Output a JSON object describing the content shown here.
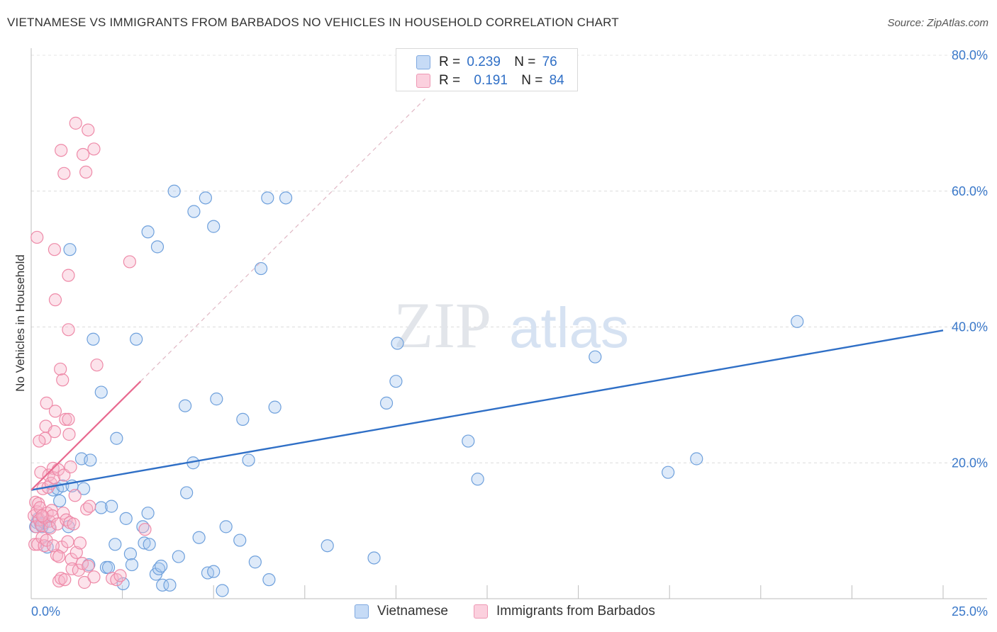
{
  "title": "VIETNAMESE VS IMMIGRANTS FROM BARBADOS NO VEHICLES IN HOUSEHOLD CORRELATION CHART",
  "source": "Source: ZipAtlas.com",
  "watermark": {
    "part1": "ZIP",
    "part2": "atlas"
  },
  "legend_top": {
    "rows": [
      {
        "r_label": "R =",
        "r_value": "0.239",
        "n_label": "N =",
        "n_value": "76",
        "color": "#a9c8f0"
      },
      {
        "r_label": "R =",
        "r_value": "0.191",
        "n_label": "N =",
        "n_value": "84",
        "color": "#f7b6cb"
      }
    ]
  },
  "chart_data": {
    "type": "scatter",
    "title": "VIETNAMESE VS IMMIGRANTS FROM BARBADOS NO VEHICLES IN HOUSEHOLD CORRELATION CHART",
    "xlabel": "",
    "ylabel": "No Vehicles in Household",
    "xlim": [
      0,
      25
    ],
    "ylim": [
      0,
      80
    ],
    "x_tick_labels": [
      "0.0%",
      "25.0%"
    ],
    "y_ticks": [
      20,
      40,
      60,
      80
    ],
    "y_tick_labels": [
      "20.0%",
      "40.0%",
      "60.0%",
      "80.0%"
    ],
    "grid": true,
    "series": [
      {
        "name": "Vietnamese",
        "color": "#a9c8f0",
        "stroke": "#6ea0dc",
        "trend": {
          "x": [
            0,
            25
          ],
          "y": [
            16.0,
            39.5
          ],
          "color": "#2f6fc6",
          "style": "solid"
        },
        "points": [
          [
            0.12,
            10.6
          ],
          [
            0.16,
            11.2
          ],
          [
            0.2,
            11.8
          ],
          [
            0.26,
            11.0
          ],
          [
            0.3,
            10.6
          ],
          [
            0.36,
            11.2
          ],
          [
            0.44,
            7.6
          ],
          [
            0.5,
            10.6
          ],
          [
            0.6,
            16.0
          ],
          [
            0.72,
            16.2
          ],
          [
            0.78,
            14.4
          ],
          [
            0.86,
            16.6
          ],
          [
            1.02,
            10.6
          ],
          [
            1.12,
            16.6
          ],
          [
            1.38,
            20.6
          ],
          [
            1.44,
            16.2
          ],
          [
            1.58,
            5.0
          ],
          [
            1.62,
            20.4
          ],
          [
            1.7,
            38.2
          ],
          [
            1.92,
            13.4
          ],
          [
            1.92,
            30.4
          ],
          [
            2.06,
            4.6
          ],
          [
            2.12,
            4.6
          ],
          [
            2.2,
            13.6
          ],
          [
            2.3,
            8.0
          ],
          [
            2.34,
            23.6
          ],
          [
            2.52,
            2.2
          ],
          [
            2.6,
            11.8
          ],
          [
            2.72,
            6.6
          ],
          [
            2.76,
            5.0
          ],
          [
            2.88,
            38.2
          ],
          [
            3.06,
            10.6
          ],
          [
            3.1,
            8.2
          ],
          [
            3.2,
            12.6
          ],
          [
            3.24,
            8.0
          ],
          [
            3.42,
            3.6
          ],
          [
            3.5,
            4.4
          ],
          [
            3.56,
            4.8
          ],
          [
            3.6,
            2.0
          ],
          [
            3.8,
            2.0
          ],
          [
            3.92,
            60.0
          ],
          [
            4.04,
            6.2
          ],
          [
            4.22,
            28.4
          ],
          [
            4.26,
            15.6
          ],
          [
            4.46,
            57.0
          ],
          [
            4.44,
            20.0
          ],
          [
            4.6,
            9.0
          ],
          [
            4.78,
            59.0
          ],
          [
            4.84,
            3.8
          ],
          [
            5.0,
            4.0
          ],
          [
            5.08,
            29.4
          ],
          [
            5.24,
            1.2
          ],
          [
            5.34,
            10.6
          ],
          [
            5.72,
            8.6
          ],
          [
            5.8,
            26.4
          ],
          [
            5.96,
            20.4
          ],
          [
            6.14,
            5.4
          ],
          [
            6.3,
            48.6
          ],
          [
            6.48,
            59.0
          ],
          [
            6.52,
            2.8
          ],
          [
            6.68,
            28.2
          ],
          [
            6.98,
            59.0
          ],
          [
            8.12,
            7.8
          ],
          [
            9.4,
            6.0
          ],
          [
            9.74,
            28.8
          ],
          [
            10.0,
            32.0
          ],
          [
            10.04,
            37.6
          ],
          [
            11.98,
            23.2
          ],
          [
            12.24,
            17.6
          ],
          [
            15.46,
            35.6
          ],
          [
            17.46,
            18.6
          ],
          [
            18.24,
            20.6
          ],
          [
            21.0,
            40.8
          ],
          [
            1.06,
            51.4
          ],
          [
            3.2,
            54.0
          ],
          [
            3.46,
            51.8
          ],
          [
            5.0,
            54.8
          ]
        ]
      },
      {
        "name": "Immigrants from Barbados",
        "color": "#f7b6cb",
        "stroke": "#ee8aa8",
        "trend": {
          "x": [
            0,
            3.0
          ],
          "y": [
            16.0,
            32.0
          ],
          "color": "#e8698f",
          "style": "solid",
          "extension": {
            "x": [
              3.0,
              10.8
            ],
            "y": [
              32.0,
              73.6
            ],
            "style": "dashed",
            "color": "#e0b8c4"
          }
        },
        "points": [
          [
            0.08,
            12.2
          ],
          [
            0.1,
            8.0
          ],
          [
            0.12,
            14.2
          ],
          [
            0.14,
            10.6
          ],
          [
            0.16,
            12.8
          ],
          [
            0.18,
            8.0
          ],
          [
            0.2,
            14.0
          ],
          [
            0.22,
            11.6
          ],
          [
            0.24,
            13.4
          ],
          [
            0.26,
            18.6
          ],
          [
            0.28,
            10.8
          ],
          [
            0.3,
            9.0
          ],
          [
            0.32,
            16.2
          ],
          [
            0.34,
            12.0
          ],
          [
            0.36,
            7.8
          ],
          [
            0.38,
            23.6
          ],
          [
            0.4,
            25.4
          ],
          [
            0.42,
            8.6
          ],
          [
            0.44,
            12.6
          ],
          [
            0.46,
            16.4
          ],
          [
            0.48,
            18.2
          ],
          [
            0.5,
            11.4
          ],
          [
            0.52,
            10.4
          ],
          [
            0.54,
            17.0
          ],
          [
            0.56,
            13.0
          ],
          [
            0.58,
            12.2
          ],
          [
            0.6,
            19.2
          ],
          [
            0.62,
            17.8
          ],
          [
            0.64,
            24.6
          ],
          [
            0.66,
            27.6
          ],
          [
            0.7,
            6.4
          ],
          [
            0.72,
            11.0
          ],
          [
            0.74,
            19.0
          ],
          [
            0.76,
            2.6
          ],
          [
            0.8,
            33.8
          ],
          [
            0.82,
            3.0
          ],
          [
            0.84,
            7.6
          ],
          [
            0.86,
            32.2
          ],
          [
            0.88,
            12.6
          ],
          [
            0.9,
            18.2
          ],
          [
            0.92,
            2.8
          ],
          [
            0.94,
            26.4
          ],
          [
            0.96,
            11.6
          ],
          [
            1.0,
            8.4
          ],
          [
            1.02,
            26.4
          ],
          [
            1.04,
            24.2
          ],
          [
            1.06,
            11.2
          ],
          [
            1.08,
            19.4
          ],
          [
            1.1,
            5.8
          ],
          [
            1.12,
            4.4
          ],
          [
            1.2,
            15.2
          ],
          [
            1.24,
            6.8
          ],
          [
            1.3,
            4.2
          ],
          [
            1.34,
            8.2
          ],
          [
            1.4,
            5.2
          ],
          [
            1.46,
            2.4
          ],
          [
            1.52,
            13.2
          ],
          [
            1.56,
            4.8
          ],
          [
            1.6,
            13.6
          ],
          [
            1.72,
            3.2
          ],
          [
            1.8,
            34.4
          ],
          [
            2.22,
            3.0
          ],
          [
            2.34,
            2.8
          ],
          [
            2.44,
            3.4
          ],
          [
            0.16,
            53.2
          ],
          [
            0.66,
            44.0
          ],
          [
            0.64,
            51.4
          ],
          [
            0.82,
            66.0
          ],
          [
            0.9,
            62.6
          ],
          [
            1.02,
            47.6
          ],
          [
            1.02,
            39.6
          ],
          [
            1.22,
            70.0
          ],
          [
            1.42,
            65.4
          ],
          [
            1.5,
            62.8
          ],
          [
            1.56,
            69.0
          ],
          [
            1.72,
            66.2
          ],
          [
            2.7,
            49.6
          ],
          [
            0.42,
            28.8
          ],
          [
            3.12,
            10.2
          ],
          [
            0.22,
            23.2
          ],
          [
            0.3,
            12.2
          ],
          [
            0.6,
            7.8
          ],
          [
            0.76,
            6.2
          ],
          [
            1.16,
            11.0
          ]
        ]
      }
    ]
  }
}
